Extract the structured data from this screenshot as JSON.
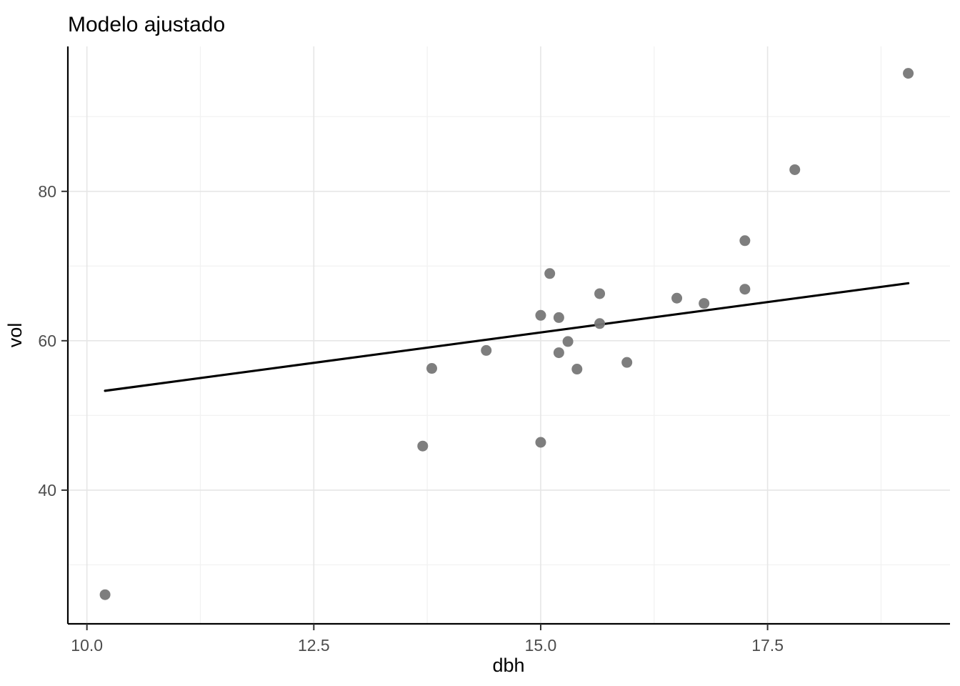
{
  "chart_data": {
    "type": "scatter",
    "title": "Modelo ajustado",
    "xlabel": "dbh",
    "ylabel": "vol",
    "legend": "none",
    "grid": "on",
    "xlim": [
      9.79,
      19.51
    ],
    "ylim": [
      22.1,
      99.4
    ],
    "x_ticks": [
      10.0,
      12.5,
      15.0,
      17.5
    ],
    "x_tick_labels": [
      "10.0",
      "12.5",
      "15.0",
      "17.5"
    ],
    "x_minor_ticks": [
      11.25,
      13.75,
      16.25,
      18.75
    ],
    "y_ticks": [
      40,
      60,
      80
    ],
    "y_tick_labels": [
      "40",
      "60",
      "80"
    ],
    "y_minor_ticks": [
      30,
      50,
      70,
      90
    ],
    "points": [
      [
        10.2,
        26.0
      ],
      [
        13.7,
        45.9
      ],
      [
        13.8,
        56.3
      ],
      [
        14.4,
        58.7
      ],
      [
        15.0,
        46.4
      ],
      [
        15.0,
        63.4
      ],
      [
        15.1,
        69.0
      ],
      [
        15.2,
        58.4
      ],
      [
        15.2,
        63.1
      ],
      [
        15.3,
        59.9
      ],
      [
        15.4,
        56.2
      ],
      [
        15.65,
        66.3
      ],
      [
        15.65,
        62.3
      ],
      [
        15.95,
        57.1
      ],
      [
        16.5,
        65.7
      ],
      [
        16.8,
        65.0
      ],
      [
        17.25,
        73.4
      ],
      [
        17.25,
        66.9
      ],
      [
        17.8,
        82.9
      ],
      [
        19.05,
        95.8
      ]
    ],
    "fit_line": {
      "x1": 10.2,
      "y1": 53.3,
      "x2": 19.05,
      "y2": 67.7
    },
    "colors": {
      "point": "#777777",
      "line": "#000000",
      "grid_major": "#e6e6e6",
      "grid_minor": "#f2f2f2",
      "axis": "#000000",
      "tick": "#333333",
      "background": "#ffffff"
    }
  }
}
